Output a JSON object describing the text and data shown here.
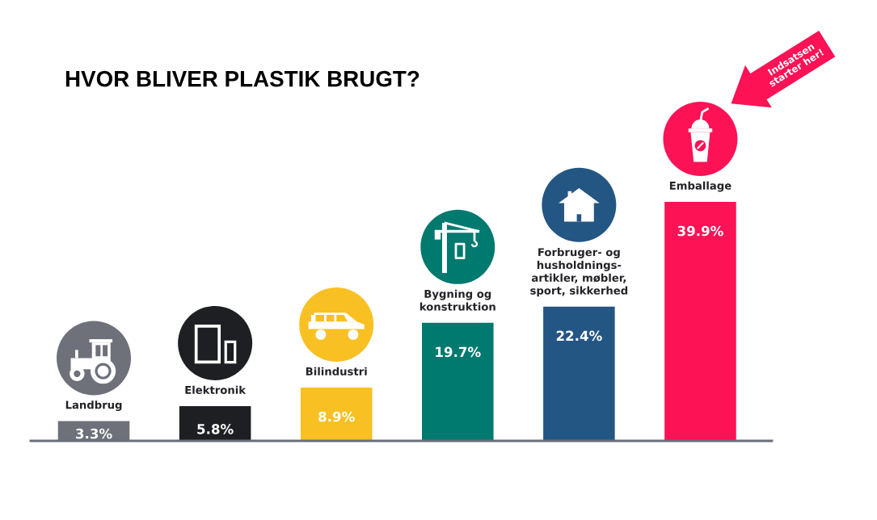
{
  "chart_data": {
    "type": "bar",
    "title": "HVOR BLIVER PLASTIK BRUGT?",
    "categories": [
      "Landbrug",
      "Elektronik",
      "Bilindustri",
      "Bygning og\nkonstruktion",
      "Forbruger- og\nhusholdnings-\nartikler, møbler,\nsport, sikkerhed",
      "Emballage"
    ],
    "values": [
      3.3,
      5.8,
      8.9,
      19.7,
      22.4,
      39.9
    ],
    "colors": [
      "#6e707a",
      "#1e1f23",
      "#f9c023",
      "#00796f",
      "#245684",
      "#fc1255"
    ],
    "value_labels": [
      "3.3%",
      "5.8%",
      "8.9%",
      "19.7%",
      "22.4%",
      "39.9%"
    ],
    "annotations": [
      "Indsatsen\nstarter her!"
    ],
    "tick_labels": "x"
  }
}
